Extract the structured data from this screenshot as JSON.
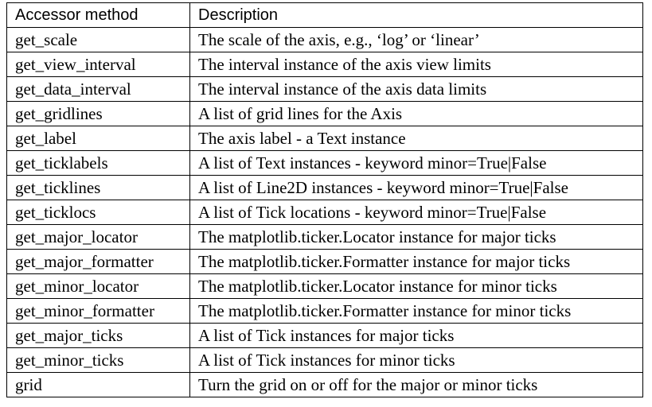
{
  "table": {
    "headers": [
      "Accessor method",
      "Description"
    ],
    "rows": [
      [
        "get_scale",
        "The scale of the axis, e.g., ‘log’ or ‘linear’"
      ],
      [
        "get_view_interval",
        "The interval instance of the axis view limits"
      ],
      [
        "get_data_interval",
        "The interval instance of the axis data limits"
      ],
      [
        "get_gridlines",
        "A list of grid lines for the Axis"
      ],
      [
        "get_label",
        "The axis label - a Text instance"
      ],
      [
        "get_ticklabels",
        "A list of Text instances - keyword minor=True|False"
      ],
      [
        "get_ticklines",
        "A list of Line2D instances - keyword minor=True|False"
      ],
      [
        "get_ticklocs",
        "A list of Tick locations - keyword minor=True|False"
      ],
      [
        "get_major_locator",
        "The matplotlib.ticker.Locator instance for major ticks"
      ],
      [
        "get_major_formatter",
        "The matplotlib.ticker.Formatter instance for major ticks"
      ],
      [
        "get_minor_locator",
        "The matplotlib.ticker.Locator instance for minor ticks"
      ],
      [
        "get_minor_formatter",
        "The matplotlib.ticker.Formatter instance for minor ticks"
      ],
      [
        "get_major_ticks",
        "A list of Tick instances for major ticks"
      ],
      [
        "get_minor_ticks",
        "A list of Tick instances for minor ticks"
      ],
      [
        "grid",
        "Turn the grid on or off for the major or minor ticks"
      ]
    ]
  }
}
